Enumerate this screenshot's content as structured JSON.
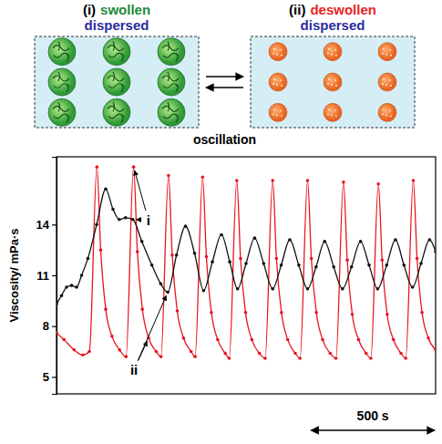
{
  "diagram": {
    "panels": [
      {
        "label": "(i)",
        "state": "swollen",
        "state_color": "#1e8a3c",
        "dispersion": "dispersed",
        "dispersion_color": "#2b2b9c"
      },
      {
        "label": "(ii)",
        "state": "deswollen",
        "state_color": "#e8241e",
        "dispersion": "dispersed",
        "dispersion_color": "#2b2b9c"
      }
    ],
    "transition": "oscillation"
  },
  "chart_data": {
    "type": "line",
    "y_label": "Viscosity/ mPa·s",
    "xlim": [
      0,
      1510
    ],
    "ylim": [
      4,
      18
    ],
    "yticks": [
      5,
      8,
      11,
      14
    ],
    "tick_labels": "y",
    "series": [
      {
        "color": "#e8141e",
        "marker": "circle",
        "x": [
          0,
          30,
          70,
          105,
          131,
          161,
          176,
          196,
          221,
          251,
          277,
          307,
          322,
          342,
          367,
          397,
          416,
          446,
          461,
          481,
          506,
          536,
          552,
          582,
          597,
          617,
          642,
          672,
          688,
          718,
          733,
          753,
          778,
          808,
          831,
          861,
          876,
          896,
          921,
          951,
          970,
          1000,
          1015,
          1035,
          1060,
          1090,
          1113,
          1143,
          1158,
          1178,
          1203,
          1233,
          1252,
          1282,
          1297,
          1317,
          1342,
          1372,
          1391,
          1421,
          1436,
          1456,
          1481,
          1510
        ],
        "values": [
          7.6,
          7.2,
          6.6,
          6.3,
          6.5,
          17.4,
          12.5,
          9.0,
          7.4,
          6.6,
          6.2,
          17.4,
          12.4,
          9.0,
          7.3,
          6.5,
          6.2,
          16.9,
          12.2,
          8.9,
          7.3,
          6.5,
          6.2,
          16.8,
          12.1,
          8.8,
          7.2,
          6.4,
          6.1,
          16.6,
          12.0,
          8.8,
          7.2,
          6.4,
          6.1,
          16.6,
          12.0,
          8.8,
          7.2,
          6.4,
          6.1,
          16.6,
          12.0,
          8.8,
          7.2,
          6.4,
          6.1,
          16.5,
          11.9,
          8.7,
          7.2,
          6.4,
          6.1,
          16.4,
          11.9,
          8.7,
          7.2,
          6.4,
          6.1,
          16.6,
          12.0,
          8.8,
          7.3,
          6.6
        ]
      },
      {
        "color": "#111111",
        "marker": "circle",
        "x": [
          0,
          20,
          40,
          60,
          80,
          100,
          125,
          160,
          196,
          225,
          250,
          275,
          304,
          340,
          380,
          415,
          443,
          478,
          514,
          550,
          586,
          621,
          657,
          690,
          721,
          755,
          789,
          825,
          861,
          895,
          929,
          965,
          1000,
          1034,
          1068,
          1104,
          1139,
          1175,
          1211,
          1245,
          1279,
          1315,
          1350,
          1384,
          1418,
          1452,
          1486,
          1510
        ],
        "values": [
          9.3,
          9.8,
          10.3,
          10.4,
          10.3,
          11.0,
          12.0,
          14.0,
          16.1,
          14.9,
          14.3,
          14.4,
          14.3,
          13.0,
          11.6,
          10.5,
          10.0,
          12.2,
          13.9,
          12.3,
          10.1,
          11.8,
          13.4,
          11.8,
          10.2,
          11.7,
          13.2,
          11.7,
          10.2,
          11.6,
          13.1,
          11.6,
          10.2,
          11.5,
          13.0,
          11.5,
          10.2,
          11.5,
          13.0,
          11.6,
          10.2,
          11.6,
          13.1,
          11.6,
          10.3,
          11.7,
          13.1,
          12.4
        ]
      }
    ],
    "annotations": [
      {
        "text": "i",
        "points": [
          [
            307,
            17.4
          ],
          [
            304,
            14.3
          ]
        ]
      },
      {
        "text": "ii",
        "points": [
          [
            443,
            10.0
          ],
          [
            367,
            7.3
          ]
        ]
      }
    ],
    "scale_bar": {
      "length": 500,
      "label": "500 s"
    }
  }
}
